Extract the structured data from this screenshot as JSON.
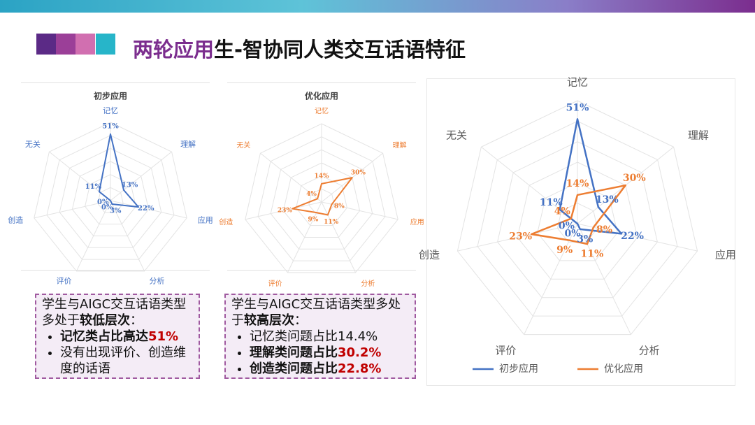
{
  "title": [
    {
      "text": "两轮应用",
      "color": "#7b2d8e"
    },
    {
      "text": "生-智协同人类交互话语特征",
      "color": "#111111"
    }
  ],
  "chart_data": [
    {
      "type": "radar",
      "title": "初步应用",
      "categories": [
        "记忆",
        "理解",
        "应用",
        "分析",
        "评价",
        "创造",
        "无关"
      ],
      "category_color": "#4472c4",
      "rlim": [
        0,
        60
      ],
      "rticks": [
        10,
        20,
        30,
        40,
        50,
        60
      ],
      "grid": true,
      "series": [
        {
          "color": "#4472c4",
          "values": [
            51,
            13,
            22,
            3,
            0,
            0,
            11
          ],
          "value_labels": [
            "51%",
            "13%",
            "22%",
            "3%",
            "0%",
            "0%",
            "11%"
          ]
        }
      ]
    },
    {
      "type": "radar",
      "title": "优化应用",
      "categories": [
        "记忆",
        "理解",
        "应用",
        "分析",
        "评价",
        "创造",
        "无关"
      ],
      "category_color": "#ed7d31",
      "rlim": [
        0,
        60
      ],
      "rticks": [
        10,
        20,
        30,
        40,
        50,
        60
      ],
      "grid": true,
      "series": [
        {
          "color": "#ed7d31",
          "values": [
            14,
            30,
            8,
            11,
            9,
            23,
            4
          ],
          "value_labels": [
            "14%",
            "30%",
            "8%",
            "11%",
            "9%",
            "23%",
            "4%"
          ]
        }
      ]
    },
    {
      "type": "radar",
      "categories": [
        "记忆",
        "理解",
        "应用",
        "分析",
        "评价",
        "创造",
        "无关"
      ],
      "category_color": "#595959",
      "rlim": [
        0,
        60
      ],
      "rticks": [
        10,
        20,
        30,
        40,
        50,
        60
      ],
      "grid": true,
      "legend": "bottom",
      "series": [
        {
          "name": "初步应用",
          "color": "#4472c4",
          "values": [
            51,
            13,
            22,
            3,
            0,
            0,
            11
          ],
          "value_labels": [
            "51%",
            "13%",
            "22%",
            "3%",
            "0%",
            "0%",
            "11%"
          ]
        },
        {
          "name": "优化应用",
          "color": "#ed7d31",
          "values": [
            14,
            30,
            8,
            11,
            9,
            23,
            4
          ],
          "value_labels": [
            "14%",
            "30%",
            "8%",
            "11%",
            "9%",
            "23%",
            "4%"
          ]
        }
      ]
    }
  ],
  "boxes": [
    {
      "intro": [
        {
          "text": "学生与AIGC交互话语类型多处于"
        },
        {
          "text": "较低层次",
          "bold": true
        },
        {
          "text": "："
        }
      ],
      "bullets": [
        [
          {
            "text": "记忆类占比高达",
            "bold": true
          },
          {
            "text": "51%",
            "bold": true,
            "color": "#c00000"
          }
        ],
        [
          {
            "text": "没有出现评价、创造维度的话语"
          }
        ]
      ]
    },
    {
      "intro": [
        {
          "text": "学生与AIGC交互话语类型多处于"
        },
        {
          "text": "较高层次",
          "bold": true
        },
        {
          "text": "："
        }
      ],
      "bullets": [
        [
          {
            "text": "记忆类问题占比14.4%"
          }
        ],
        [
          {
            "text": "理解类问题占比",
            "bold": true
          },
          {
            "text": "30.2%",
            "bold": true,
            "color": "#c00000"
          }
        ],
        [
          {
            "text": "创造类问题占比",
            "bold": true
          },
          {
            "text": "22.8%",
            "bold": true,
            "color": "#c00000"
          }
        ]
      ]
    }
  ]
}
